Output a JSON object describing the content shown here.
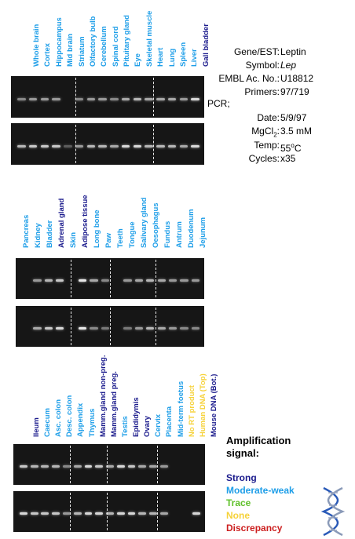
{
  "colors": {
    "strong": "#1a1a8c",
    "moderate": "#1e9ee8",
    "trace": "#5fc02a",
    "none": "#f6d23a",
    "discrepancy": "#cc1e1e"
  },
  "panels": [
    {
      "labels": [
        {
          "t": "Whole brain",
          "c": "moderate"
        },
        {
          "t": "Cortex",
          "c": "moderate"
        },
        {
          "t": "Hippocampus",
          "c": "moderate"
        },
        {
          "t": "Mid brain",
          "c": "moderate"
        },
        {
          "t": "Striatum",
          "c": "moderate"
        },
        {
          "t": "Olfactory bulb",
          "c": "moderate"
        },
        {
          "t": "Cerebellum",
          "c": "moderate"
        },
        {
          "t": "Spinal cord",
          "c": "moderate"
        },
        {
          "t": "Pituitary gland",
          "c": "moderate"
        },
        {
          "t": "Eye",
          "c": "moderate"
        },
        {
          "t": "Skeletal muscle",
          "c": "moderate"
        },
        {
          "t": "Heart",
          "c": "moderate"
        },
        {
          "t": "Lung",
          "c": "moderate"
        },
        {
          "t": "Spleen",
          "c": "moderate"
        },
        {
          "t": "Liver",
          "c": "moderate"
        },
        {
          "t": "Gall bladder",
          "c": "strong"
        }
      ]
    },
    {
      "labels": [
        {
          "t": "Pancreas",
          "c": "moderate"
        },
        {
          "t": "Kidney",
          "c": "moderate"
        },
        {
          "t": "Bladder",
          "c": "moderate"
        },
        {
          "t": "Adrenal gland",
          "c": "strong"
        },
        {
          "t": "Skin",
          "c": "moderate"
        },
        {
          "t": "Adipose tissue",
          "c": "strong"
        },
        {
          "t": "Long bone",
          "c": "moderate"
        },
        {
          "t": "Paw",
          "c": "moderate"
        },
        {
          "t": "Teeth",
          "c": "moderate"
        },
        {
          "t": "Tongue",
          "c": "moderate"
        },
        {
          "t": "Salivary gland",
          "c": "moderate"
        },
        {
          "t": "Oesophagus",
          "c": "moderate"
        },
        {
          "t": "Fundus",
          "c": "moderate"
        },
        {
          "t": "Antrum",
          "c": "moderate"
        },
        {
          "t": "Duodenum",
          "c": "moderate"
        },
        {
          "t": "Jejunum",
          "c": "moderate"
        }
      ]
    },
    {
      "labels": [
        {
          "t": "Ileum",
          "c": "strong"
        },
        {
          "t": "Caecum",
          "c": "moderate"
        },
        {
          "t": "Asc. colon",
          "c": "moderate"
        },
        {
          "t": "Desc. colon",
          "c": "moderate"
        },
        {
          "t": "Appendix",
          "c": "moderate"
        },
        {
          "t": "Thymus",
          "c": "moderate"
        },
        {
          "t": "Mamm.gland non-preg.",
          "c": "strong"
        },
        {
          "t": "Mamm.gland preg.",
          "c": "strong"
        },
        {
          "t": "Testis",
          "c": "moderate"
        },
        {
          "t": "Epididymis",
          "c": "strong"
        },
        {
          "t": "Ovary",
          "c": "strong"
        },
        {
          "t": "Cervix",
          "c": "moderate"
        },
        {
          "t": "Placenta",
          "c": "moderate"
        },
        {
          "t": "Mid-term foetus",
          "c": "moderate"
        },
        {
          "t": "No RT product",
          "c": "none"
        },
        {
          "t": "Human DNA (Top)",
          "c": "none"
        },
        {
          "t": "Mouse DNA (Bot.)",
          "c": "strong"
        }
      ]
    }
  ],
  "gel_bands": [
    {
      "top": [
        0.4,
        0.5,
        0.5,
        0.5,
        0,
        0.4,
        0.5,
        0.5,
        0.4,
        0.6,
        0.7,
        0.6,
        0.6,
        0.6,
        0.5,
        0.9
      ],
      "bottom": [
        0.7,
        0.8,
        0.8,
        0.8,
        0.1,
        0.5,
        0.7,
        0.7,
        0.6,
        0.9,
        0.9,
        0.7,
        0.7,
        0.7,
        0.6,
        0.9
      ]
    },
    {
      "top": [
        0,
        0.5,
        0.7,
        0.8,
        0,
        1.0,
        0.6,
        0.4,
        0,
        0.5,
        0.6,
        0.7,
        0.6,
        0.5,
        0.5,
        0.5
      ],
      "bottom": [
        0,
        0.6,
        0.8,
        0.9,
        0,
        1.0,
        0.4,
        0.3,
        0,
        0.3,
        0.5,
        0.7,
        0.6,
        0.5,
        0.4,
        0.4
      ]
    },
    {
      "top": [
        0.8,
        0.7,
        0.7,
        0.7,
        0.4,
        0.6,
        0.9,
        0.8,
        0.6,
        0.9,
        0.8,
        0.6,
        0.6,
        0.5,
        0,
        0,
        0
      ],
      "bottom": [
        0.9,
        0.8,
        0.8,
        0.8,
        0.5,
        0.7,
        0.9,
        0.9,
        0.7,
        0.9,
        0.9,
        0.7,
        0.7,
        0.6,
        0,
        0,
        0.9
      ]
    }
  ],
  "info": {
    "gene_key": "Gene/EST:",
    "gene_val": "Leptin",
    "symbol_key": "Symbol:",
    "symbol_val": "Lep",
    "embl_key": "EMBL Ac. No.:",
    "embl_val": "U18812",
    "primers_key": "Primers:",
    "primers_val": "97/719",
    "pcr": "PCR;",
    "date_key": "Date:",
    "date_val": "5/9/97",
    "mgcl_key": "MgCl",
    "mgcl_sub": "2",
    "mgcl_colon": ":",
    "mgcl_val": "3.5 mM",
    "temp_key": "Temp:",
    "temp_val": "55",
    "temp_sup": "o",
    "temp_unit": "C",
    "cycles_key": "Cycles:",
    "cycles_val": "x35"
  },
  "legend": {
    "title1": "Amplification",
    "title2": "signal:",
    "strong": "Strong",
    "moderate": "Moderate-weak",
    "trace": "Trace",
    "none": "None",
    "discrepancy": "Discrepancy"
  }
}
